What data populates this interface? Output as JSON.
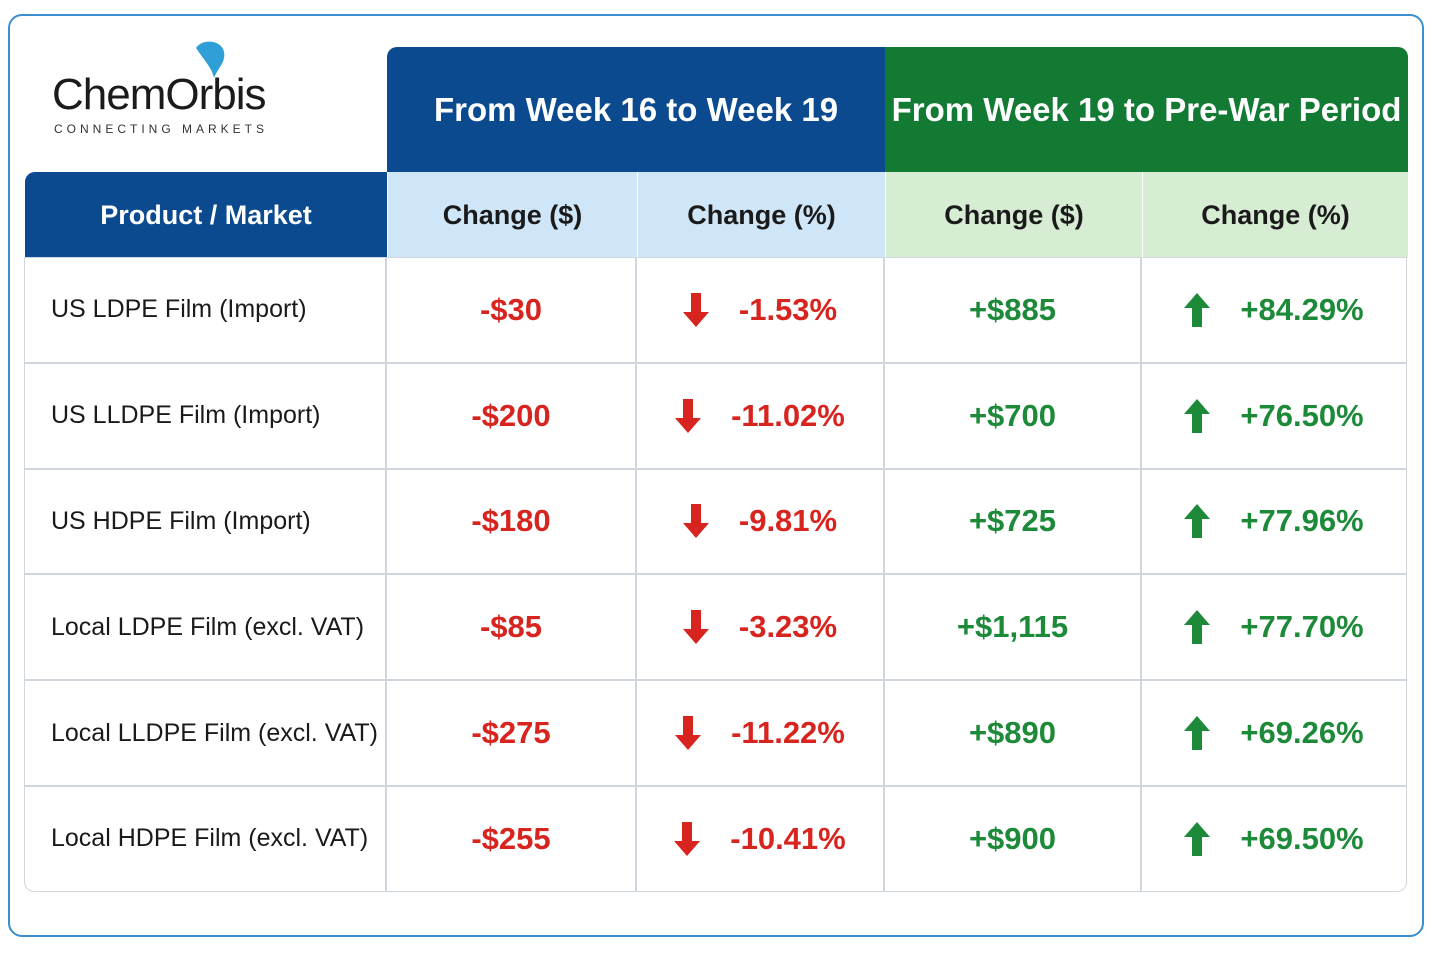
{
  "logo": {
    "name": "ChemOrbis",
    "tagline": "CONNECTING MARKETS"
  },
  "table": {
    "groups": [
      "From Week 16 to Week 19",
      "From Week 19 to Pre-War Period"
    ],
    "columns": [
      "Product / Market",
      "Change ($)",
      "Change (%)",
      "Change ($)",
      "Change (%)"
    ],
    "rows": [
      [
        "US LDPE Film (Import)",
        "-$30",
        "-1.53%",
        "+$885",
        "+84.29%"
      ],
      [
        "US LLDPE Film (Import)",
        "-$200",
        "-11.02%",
        "+$700",
        "+76.50%"
      ],
      [
        "US HDPE Film (Import)",
        "-$180",
        "-9.81%",
        "+$725",
        "+77.96%"
      ],
      [
        "Local LDPE Film (excl. VAT)",
        "-$85",
        "-3.23%",
        "+$1,115",
        "+77.70%"
      ],
      [
        "Local LLDPE Film (excl. VAT)",
        "-$275",
        "-11.22%",
        "+$890",
        "+69.26%"
      ],
      [
        "Local HDPE Film (excl. VAT)",
        "-$255",
        "-10.41%",
        "+$900",
        "+69.50%"
      ]
    ]
  }
}
